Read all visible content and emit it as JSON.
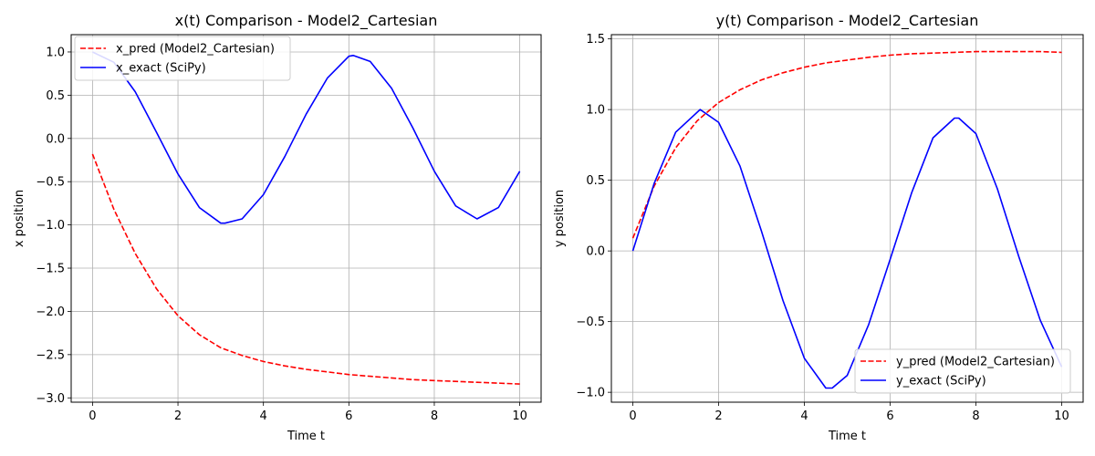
{
  "chart_data": [
    {
      "type": "line",
      "title": "x(t) Comparison - Model2_Cartesian",
      "xlabel": "Time t",
      "ylabel": "x position",
      "xlim": [
        -0.5,
        10.5
      ],
      "ylim": [
        -3.05,
        1.2
      ],
      "xticks": [
        0,
        2,
        4,
        6,
        8,
        10
      ],
      "xtick_labels": [
        "0",
        "2",
        "4",
        "6",
        "8",
        "10"
      ],
      "yticks": [
        1.0,
        0.5,
        0.0,
        -0.5,
        -1.0,
        -1.5,
        -2.0,
        -2.5,
        -3.0
      ],
      "ytick_labels": [
        "1.0",
        "0.5",
        "0.0",
        "−0.5",
        "−1.0",
        "−1.5",
        "−2.0",
        "−2.5",
        "−3.0"
      ],
      "grid": true,
      "legend_position": "top-left",
      "series": [
        {
          "name": "x_pred (Model2_Cartesian)",
          "color": "#ff0000",
          "style": "dashed",
          "x": [
            0,
            0.5,
            1,
            1.5,
            2,
            2.5,
            3,
            3.5,
            4,
            4.5,
            5,
            5.5,
            6,
            6.5,
            7,
            7.5,
            8,
            8.5,
            9,
            9.5,
            10
          ],
          "y": [
            -0.18,
            -0.82,
            -1.33,
            -1.74,
            -2.05,
            -2.27,
            -2.42,
            -2.51,
            -2.58,
            -2.63,
            -2.67,
            -2.7,
            -2.73,
            -2.75,
            -2.77,
            -2.79,
            -2.8,
            -2.81,
            -2.82,
            -2.83,
            -2.84
          ]
        },
        {
          "name": "x_exact (SciPy)",
          "color": "#0000ff",
          "style": "solid",
          "x": [
            0,
            0.5,
            1,
            1.5,
            2,
            2.5,
            3,
            3.1,
            3.5,
            4,
            4.5,
            5,
            5.5,
            6,
            6.1,
            6.5,
            7,
            7.5,
            8,
            8.5,
            9,
            9.5,
            10
          ],
          "y": [
            1.0,
            0.88,
            0.54,
            0.07,
            -0.41,
            -0.8,
            -0.98,
            -0.98,
            -0.93,
            -0.65,
            -0.21,
            0.28,
            0.7,
            0.95,
            0.96,
            0.89,
            0.58,
            0.12,
            -0.38,
            -0.78,
            -0.93,
            -0.8,
            -0.38
          ]
        }
      ]
    },
    {
      "type": "line",
      "title": "y(t) Comparison - Model2_Cartesian",
      "xlabel": "Time t",
      "ylabel": "y position",
      "xlim": [
        -0.5,
        10.5
      ],
      "ylim": [
        -1.07,
        1.53
      ],
      "xticks": [
        0,
        2,
        4,
        6,
        8,
        10
      ],
      "xtick_labels": [
        "0",
        "2",
        "4",
        "6",
        "8",
        "10"
      ],
      "yticks": [
        1.5,
        1.0,
        0.5,
        0.0,
        -0.5,
        -1.0
      ],
      "ytick_labels": [
        "1.5",
        "1.0",
        "0.5",
        "0.0",
        "−0.5",
        "−1.0"
      ],
      "grid": true,
      "legend_position": "bottom-right",
      "series": [
        {
          "name": "y_pred (Model2_Cartesian)",
          "color": "#ff0000",
          "style": "dashed",
          "x": [
            0,
            0.5,
            1,
            1.5,
            2,
            2.5,
            3,
            3.5,
            4,
            4.5,
            5,
            5.5,
            6,
            6.5,
            7,
            7.5,
            8,
            8.5,
            9,
            9.5,
            10
          ],
          "y": [
            0.09,
            0.46,
            0.73,
            0.92,
            1.05,
            1.14,
            1.21,
            1.26,
            1.3,
            1.33,
            1.35,
            1.37,
            1.385,
            1.395,
            1.4,
            1.405,
            1.41,
            1.41,
            1.41,
            1.41,
            1.405
          ]
        },
        {
          "name": "y_exact (SciPy)",
          "color": "#0000ff",
          "style": "solid",
          "x": [
            0,
            0.5,
            1,
            1.57,
            2,
            2.5,
            3,
            3.5,
            4,
            4.5,
            4.65,
            5,
            5.5,
            6,
            6.5,
            7,
            7.5,
            7.6,
            8,
            8.5,
            9,
            9.5,
            10
          ],
          "y": [
            0.0,
            0.48,
            0.84,
            1.0,
            0.91,
            0.6,
            0.14,
            -0.35,
            -0.76,
            -0.97,
            -0.97,
            -0.88,
            -0.52,
            -0.06,
            0.41,
            0.8,
            0.94,
            0.94,
            0.83,
            0.44,
            -0.04,
            -0.49,
            -0.82
          ]
        }
      ]
    }
  ]
}
